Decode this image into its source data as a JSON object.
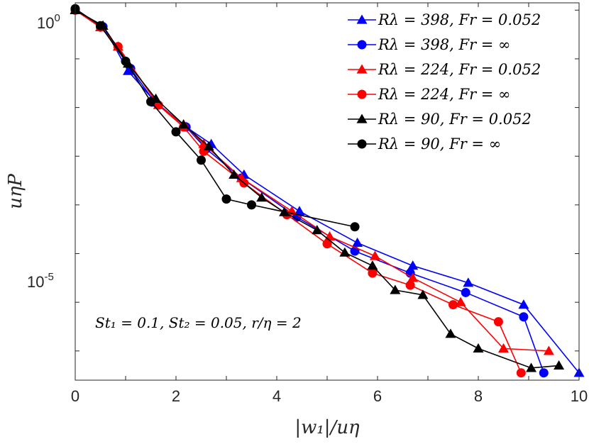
{
  "chart_data": {
    "type": "line",
    "title": "",
    "xlabel": "|w₁|/uη",
    "ylabel": "uηP",
    "xlim": [
      0,
      10
    ],
    "ylog10_range": [
      -7.6,
      0.15
    ],
    "x_ticks": [
      "0",
      "2",
      "4",
      "6",
      "8",
      "10"
    ],
    "y_ticks": [
      {
        "base": "10",
        "exp": "0",
        "value": 1
      },
      {
        "base": "10",
        "exp": "-5",
        "value": 1e-05
      }
    ],
    "grid": false,
    "legend_position": "top-right",
    "annotation": "St₁ = 0.1, St₂ = 0.05, r/η = 2",
    "series": [
      {
        "name": "Rλ = 398, Fr = 0.052",
        "color": "#0000ff",
        "marker": "triangle",
        "x": [
          0,
          0.55,
          1.05,
          1.6,
          2.2,
          2.7,
          3.35,
          4.45,
          5.6,
          6.7,
          7.8,
          8.9,
          10.0
        ],
        "log10_y": [
          0,
          -0.32,
          -1.25,
          -1.9,
          -2.4,
          -2.75,
          -3.38,
          -4.13,
          -4.78,
          -5.25,
          -5.6,
          -6.05,
          -7.45
        ]
      },
      {
        "name": "Rλ = 398, Fr = ∞",
        "color": "#0000ff",
        "marker": "circle",
        "x": [
          0,
          0.55,
          1.1,
          1.55,
          2.2,
          2.6,
          3.3,
          4.4,
          5.55,
          6.65,
          7.75,
          8.9,
          9.3
        ],
        "log10_y": [
          0,
          -0.34,
          -1.2,
          -1.85,
          -2.4,
          -2.85,
          -3.45,
          -4.25,
          -4.95,
          -5.4,
          -5.8,
          -6.3,
          -7.45
        ]
      },
      {
        "name": "Rλ = 224, Fr = 0.052",
        "color": "#ff0000",
        "marker": "triangle",
        "x": [
          0,
          0.5,
          0.85,
          1.65,
          2.15,
          2.55,
          3.3,
          4.3,
          5.05,
          5.95,
          6.7,
          7.65,
          8.5,
          9.4
        ],
        "log10_y": [
          0,
          -0.35,
          -0.75,
          -1.95,
          -2.35,
          -2.75,
          -3.45,
          -4.13,
          -4.65,
          -5.05,
          -5.5,
          -6.0,
          -6.95,
          -7.0
        ]
      },
      {
        "name": "Rλ = 224, Fr = ∞",
        "color": "#ff0000",
        "marker": "circle",
        "x": [
          0,
          0.5,
          0.85,
          1.65,
          2.15,
          2.55,
          3.35,
          4.2,
          5.0,
          5.9,
          6.65,
          7.5,
          8.4,
          8.85
        ],
        "log10_y": [
          0,
          -0.35,
          -0.75,
          -1.95,
          -2.4,
          -2.9,
          -3.55,
          -4.2,
          -4.8,
          -5.4,
          -5.65,
          -6.05,
          -6.4,
          -7.45
        ]
      },
      {
        "name": "Rλ = 90, Fr = 0.052",
        "color": "#000000",
        "marker": "triangle",
        "x": [
          0,
          0.55,
          1.05,
          1.6,
          2.15,
          2.65,
          3.15,
          3.7,
          4.15,
          4.8,
          5.35,
          5.9,
          6.35,
          6.9,
          7.45,
          8.0,
          9.05,
          9.6
        ],
        "log10_y": [
          0,
          -0.32,
          -1.1,
          -1.82,
          -2.35,
          -2.8,
          -3.38,
          -3.85,
          -4.15,
          -4.52,
          -4.98,
          -5.25,
          -5.75,
          -5.85,
          -6.65,
          -6.95,
          -7.35,
          -7.3
        ]
      },
      {
        "name": "Rλ = 90, Fr = ∞",
        "color": "#000000",
        "marker": "circle",
        "x": [
          0,
          0.5,
          1.0,
          1.5,
          2.0,
          2.5,
          3.0,
          3.5,
          5.55
        ],
        "log10_y": [
          0.03,
          -0.32,
          -1.05,
          -1.88,
          -2.5,
          -3.08,
          -3.88,
          -4.0,
          -4.45
        ]
      }
    ]
  }
}
